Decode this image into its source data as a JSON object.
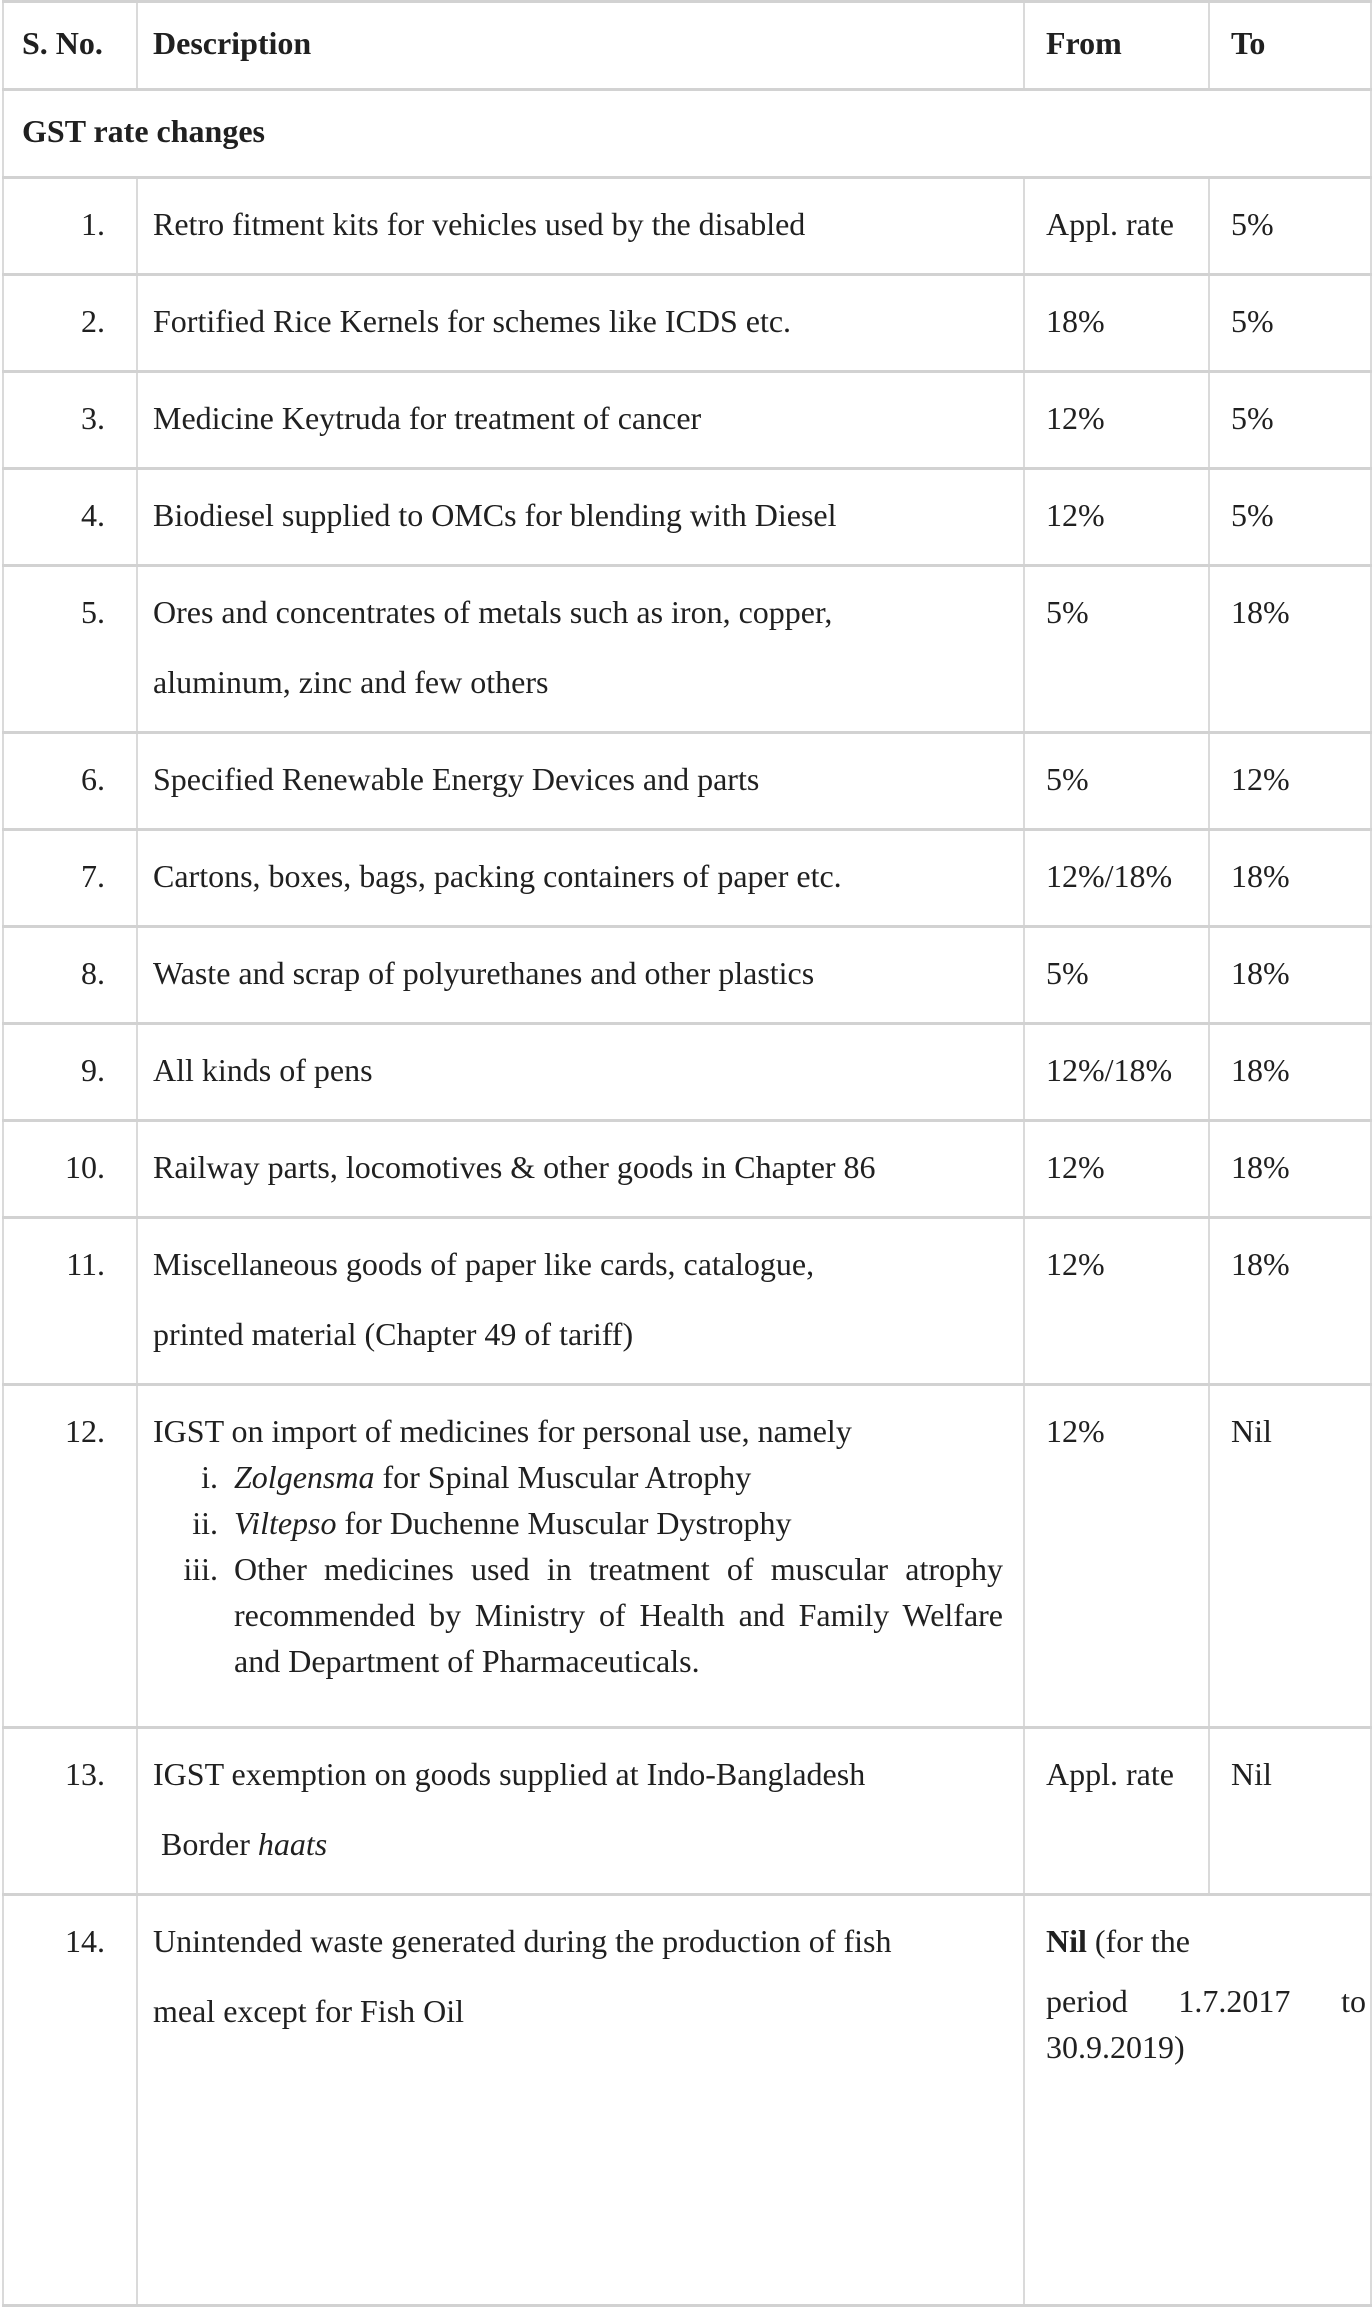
{
  "page": {
    "background_color": "#ffffff",
    "text_color": "#202020",
    "border_color": "#d2d2d2"
  },
  "table": {
    "headers": [
      {
        "label": "S. No."
      },
      {
        "label": "Description"
      },
      {
        "label": "From"
      },
      {
        "label": "To"
      }
    ],
    "section_label": "GST rate changes",
    "rows": [
      {
        "sno": "1.",
        "description": {
          "paragraphs": [
            {
              "runs": [
                {
                  "text": "Retro fitment kits for vehicles used by the disabled"
                }
              ]
            }
          ]
        },
        "from": {
          "paragraphs": [
            {
              "runs": [
                {
                  "text": "Appl. rate"
                }
              ]
            }
          ]
        },
        "to": {
          "paragraphs": [
            {
              "runs": [
                {
                  "text": "5%"
                }
              ]
            }
          ]
        }
      },
      {
        "sno": "2.",
        "description": {
          "paragraphs": [
            {
              "runs": [
                {
                  "text": "Fortified Rice Kernels for schemes like ICDS etc."
                }
              ]
            }
          ]
        },
        "from": {
          "paragraphs": [
            {
              "runs": [
                {
                  "text": "18%"
                }
              ]
            }
          ]
        },
        "to": {
          "paragraphs": [
            {
              "runs": [
                {
                  "text": "5%"
                }
              ]
            }
          ]
        }
      },
      {
        "sno": "3.",
        "description": {
          "paragraphs": [
            {
              "runs": [
                {
                  "text": "Medicine Keytruda for treatment of cancer"
                }
              ]
            }
          ]
        },
        "from": {
          "paragraphs": [
            {
              "runs": [
                {
                  "text": "12%"
                }
              ]
            }
          ]
        },
        "to": {
          "paragraphs": [
            {
              "runs": [
                {
                  "text": "5%"
                }
              ]
            }
          ]
        }
      },
      {
        "sno": "4.",
        "description": {
          "paragraphs": [
            {
              "runs": [
                {
                  "text": "Biodiesel supplied to OMCs for blending with Diesel"
                }
              ]
            }
          ]
        },
        "from": {
          "paragraphs": [
            {
              "runs": [
                {
                  "text": "12%"
                }
              ]
            }
          ]
        },
        "to": {
          "paragraphs": [
            {
              "runs": [
                {
                  "text": "5%"
                }
              ]
            }
          ]
        }
      },
      {
        "sno": "5.",
        "description": {
          "paragraphs": [
            {
              "runs": [
                {
                  "text": "Ores and concentrates of metals such as iron, copper,"
                }
              ]
            },
            {
              "runs": [
                {
                  "text": "aluminum, zinc and few others"
                }
              ]
            }
          ]
        },
        "from": {
          "paragraphs": [
            {
              "runs": [
                {
                  "text": "5%"
                }
              ]
            }
          ]
        },
        "to": {
          "paragraphs": [
            {
              "runs": [
                {
                  "text": "18%"
                }
              ]
            }
          ]
        }
      },
      {
        "sno": "6.",
        "description": {
          "paragraphs": [
            {
              "runs": [
                {
                  "text": "Specified Renewable Energy Devices and parts"
                }
              ]
            }
          ]
        },
        "from": {
          "paragraphs": [
            {
              "runs": [
                {
                  "text": "5%"
                }
              ]
            }
          ]
        },
        "to": {
          "paragraphs": [
            {
              "runs": [
                {
                  "text": "12%"
                }
              ]
            }
          ]
        }
      },
      {
        "sno": "7.",
        "description": {
          "paragraphs": [
            {
              "runs": [
                {
                  "text": "Cartons, boxes, bags, packing containers of paper etc."
                }
              ]
            }
          ]
        },
        "from": {
          "paragraphs": [
            {
              "runs": [
                {
                  "text": "12%/18%"
                }
              ]
            }
          ]
        },
        "to": {
          "paragraphs": [
            {
              "runs": [
                {
                  "text": "18%"
                }
              ]
            }
          ]
        }
      },
      {
        "sno": "8.",
        "description": {
          "paragraphs": [
            {
              "runs": [
                {
                  "text": "Waste and scrap of polyurethanes and other plastics"
                }
              ]
            }
          ]
        },
        "from": {
          "paragraphs": [
            {
              "runs": [
                {
                  "text": "5%"
                }
              ]
            }
          ]
        },
        "to": {
          "paragraphs": [
            {
              "runs": [
                {
                  "text": "18%"
                }
              ]
            }
          ]
        }
      },
      {
        "sno": "9.",
        "description": {
          "paragraphs": [
            {
              "runs": [
                {
                  "text": "All kinds of pens"
                }
              ]
            }
          ]
        },
        "from": {
          "paragraphs": [
            {
              "runs": [
                {
                  "text": "12%/18%"
                }
              ]
            }
          ]
        },
        "to": {
          "paragraphs": [
            {
              "runs": [
                {
                  "text": "18%"
                }
              ]
            }
          ]
        }
      },
      {
        "sno": "10.",
        "description": {
          "paragraphs": [
            {
              "runs": [
                {
                  "text": "Railway parts, locomotives & other goods in Chapter 86"
                }
              ]
            }
          ]
        },
        "from": {
          "paragraphs": [
            {
              "runs": [
                {
                  "text": "12%"
                }
              ]
            }
          ]
        },
        "to": {
          "paragraphs": [
            {
              "runs": [
                {
                  "text": "18%"
                }
              ]
            }
          ]
        }
      },
      {
        "sno": "11.",
        "description": {
          "paragraphs": [
            {
              "runs": [
                {
                  "text": "Miscellaneous goods of paper like cards, catalogue,"
                }
              ]
            },
            {
              "runs": [
                {
                  "text": "printed material (Chapter 49 of tariff)"
                }
              ]
            }
          ]
        },
        "from": {
          "paragraphs": [
            {
              "runs": [
                {
                  "text": "12%"
                }
              ]
            }
          ]
        },
        "to": {
          "paragraphs": [
            {
              "runs": [
                {
                  "text": "18%"
                }
              ]
            }
          ]
        }
      },
      {
        "sno": "12.",
        "description": {
          "paragraphs": [
            {
              "runs": [
                {
                  "text": "IGST on import of medicines for personal use, namely"
                }
              ]
            }
          ],
          "list": {
            "style": "lower-roman",
            "items": [
              {
                "marker": "i.",
                "runs": [
                  {
                    "text": "Zolgensma",
                    "italic": true
                  },
                  {
                    "text": " for Spinal Muscular Atrophy"
                  }
                ]
              },
              {
                "marker": "ii.",
                "runs": [
                  {
                    "text": "Viltepso",
                    "italic": true
                  },
                  {
                    "text": " for Duchenne Muscular Dystrophy"
                  }
                ]
              },
              {
                "marker": "iii.",
                "justify": true,
                "runs": [
                  {
                    "text": "Other medicines used in treatment of muscular atrophy recommended by Ministry of Health and Family Welfare and Department of Pharmaceuticals."
                  }
                ]
              }
            ]
          }
        },
        "from": {
          "paragraphs": [
            {
              "runs": [
                {
                  "text": "12%"
                }
              ]
            }
          ]
        },
        "to": {
          "paragraphs": [
            {
              "runs": [
                {
                  "text": "Nil"
                }
              ]
            }
          ]
        }
      },
      {
        "sno": "13.",
        "description": {
          "paragraphs": [
            {
              "runs": [
                {
                  "text": "IGST exemption on goods supplied at Indo-Bangladesh"
                }
              ]
            },
            {
              "runs": [
                {
                  "text": " Border "
                },
                {
                  "text": "haats",
                  "italic": true
                }
              ]
            }
          ]
        },
        "from": {
          "paragraphs": [
            {
              "runs": [
                {
                  "text": "Appl. rate"
                }
              ]
            }
          ]
        },
        "to": {
          "paragraphs": [
            {
              "runs": [
                {
                  "text": "Nil"
                }
              ]
            }
          ]
        }
      },
      {
        "sno": "14.",
        "description": {
          "paragraphs": [
            {
              "runs": [
                {
                  "text": "Unintended waste generated during the production of fish"
                }
              ]
            },
            {
              "runs": [
                {
                  "text": "meal except for Fish Oil"
                }
              ]
            }
          ]
        },
        "from": {
          "colspan": 2,
          "paragraphs": [
            {
              "runs": [
                {
                  "text": "Nil",
                  "bold": true
                },
                {
                  "text": " (for the"
                }
              ]
            },
            {
              "justify": true,
              "runs": [
                {
                  "text": "period 1.7.2017 to 30.9.2019)"
                }
              ]
            }
          ]
        },
        "to": null
      }
    ]
  }
}
